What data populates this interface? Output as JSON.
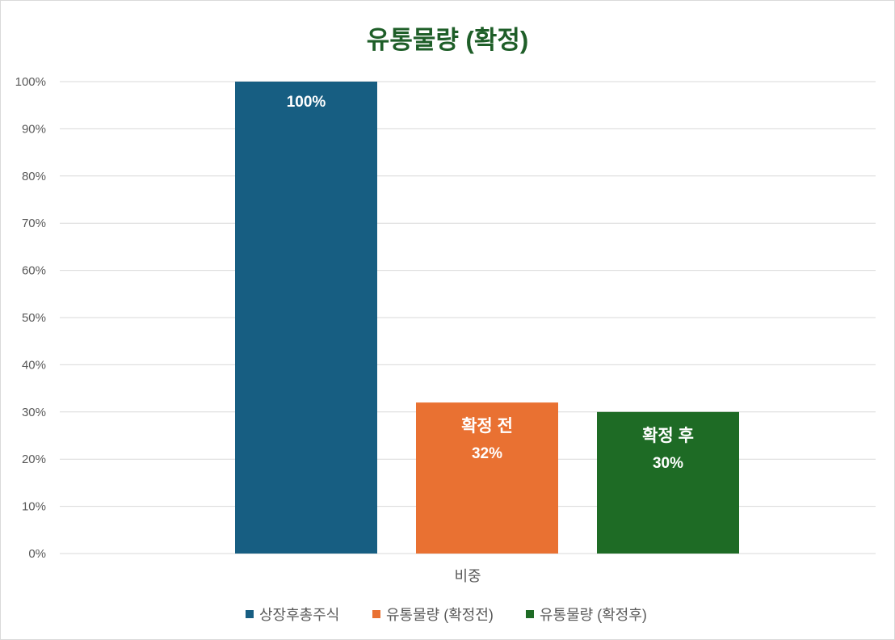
{
  "chart_data": {
    "type": "bar",
    "title": "유통물량 (확정)",
    "title_color": "#1e5e28",
    "categories": [
      "비중"
    ],
    "ylim": [
      0,
      1
    ],
    "ytick_values": [
      0,
      0.1,
      0.2,
      0.3,
      0.4,
      0.5,
      0.6,
      0.7,
      0.8,
      0.9,
      1.0
    ],
    "ytick_labels": [
      "0%",
      "10%",
      "20%",
      "30%",
      "40%",
      "50%",
      "60%",
      "70%",
      "80%",
      "90%",
      "100%"
    ],
    "grid": true,
    "legend_position": "bottom",
    "series": [
      {
        "name": "상장후총주식",
        "values": [
          1.0
        ],
        "color": "#175e82",
        "label_lines": [
          "100%"
        ]
      },
      {
        "name": "유통물량 (확정전)",
        "values": [
          0.32
        ],
        "color": "#e97132",
        "label_lines": [
          "확정 전",
          "32%"
        ]
      },
      {
        "name": "유통물량 (확정후)",
        "values": [
          0.3
        ],
        "color": "#1e6b25",
        "label_lines": [
          "확정 후",
          "30%"
        ]
      }
    ]
  }
}
